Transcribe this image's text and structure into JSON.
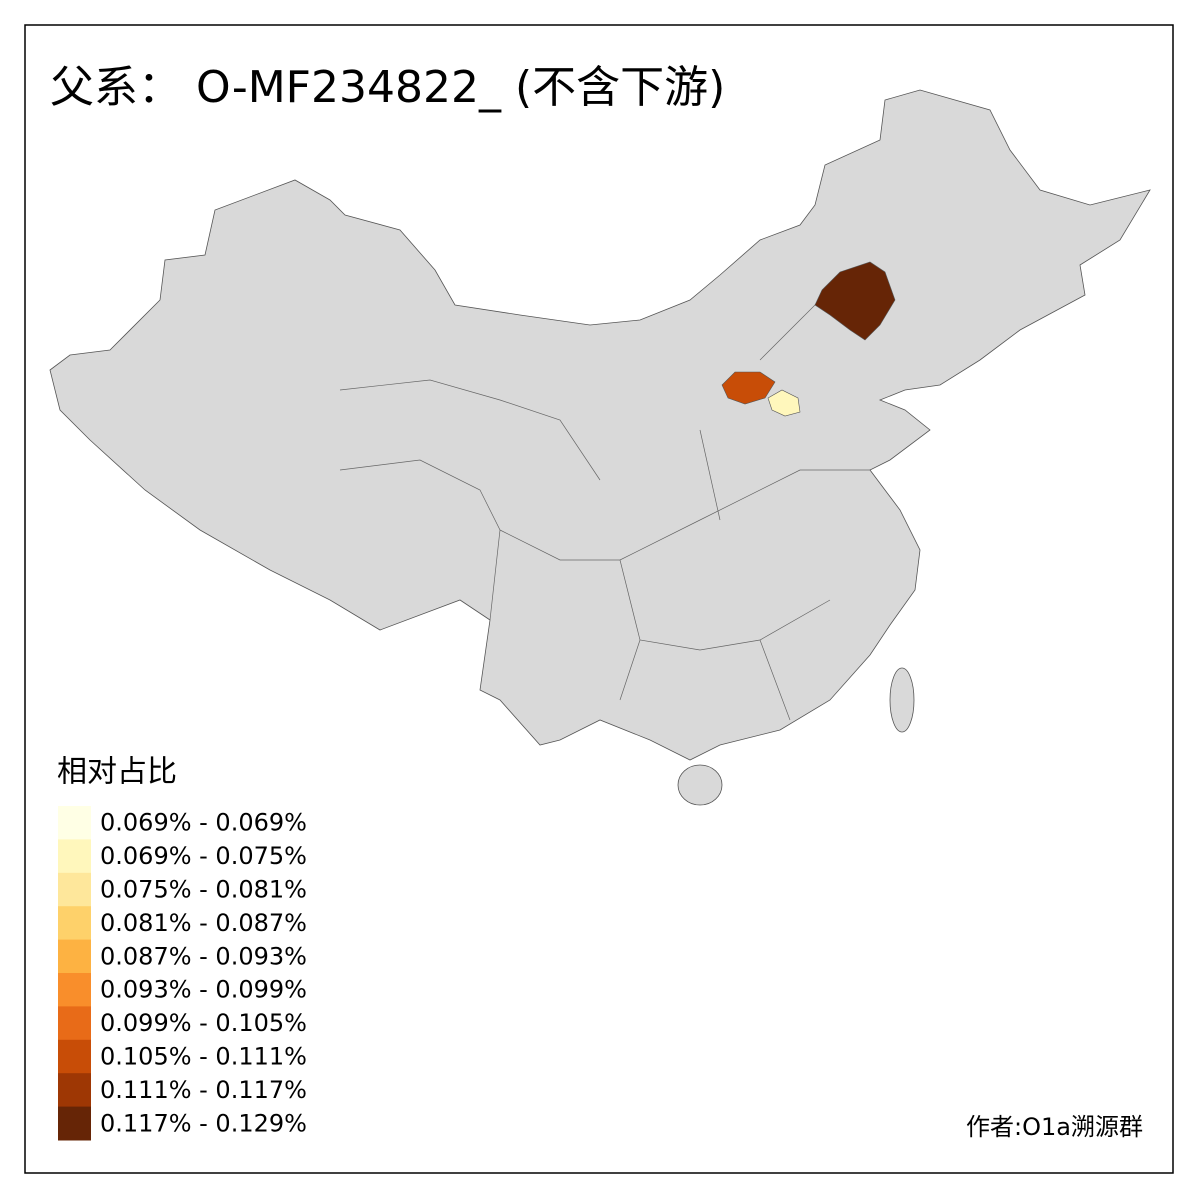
{
  "title": "父系： O-MF234822_ (不含下游)",
  "legend": {
    "title": "相对占比",
    "items": [
      {
        "label": "0.069% - 0.069%",
        "color": "#ffffe5"
      },
      {
        "label": "0.069% - 0.075%",
        "color": "#fff7bc"
      },
      {
        "label": "0.075% - 0.081%",
        "color": "#fee79b"
      },
      {
        "label": "0.081% - 0.087%",
        "color": "#fed16a"
      },
      {
        "label": "0.087% - 0.093%",
        "color": "#fdb242"
      },
      {
        "label": "0.093% - 0.099%",
        "color": "#f98e2b"
      },
      {
        "label": "0.099% - 0.105%",
        "color": "#e86b18"
      },
      {
        "label": "0.105% - 0.111%",
        "color": "#c84d07"
      },
      {
        "label": "0.111% - 0.117%",
        "color": "#9e3704"
      },
      {
        "label": "0.117% - 0.129%",
        "color": "#662506"
      }
    ]
  },
  "credit": "作者:O1a溯源群"
}
